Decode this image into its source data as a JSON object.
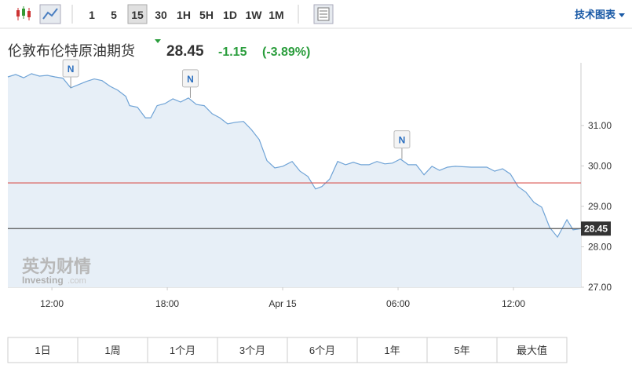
{
  "toolbar": {
    "intervals": [
      "1",
      "5",
      "15",
      "30",
      "1H",
      "5H",
      "1D",
      "1W",
      "1M"
    ],
    "active_interval": "15",
    "menu": "技术图表"
  },
  "header": {
    "name": "伦敦布伦特原油期货",
    "price": 28.45,
    "change": -1.15,
    "change_pct": "(-3.89%)"
  },
  "periods": [
    "1日",
    "1周",
    "1个月",
    "3个月",
    "6个月",
    "1年",
    "5年",
    "最大值"
  ],
  "watermark": {
    "cn": "英为财情",
    "en": "Investing",
    "suffix": ".com"
  },
  "chart_data": {
    "type": "line",
    "area": true,
    "x": [
      9.71,
      10.12,
      10.53,
      10.94,
      11.35,
      11.76,
      12.16,
      12.57,
      12.98,
      13.39,
      13.8,
      14.2,
      14.61,
      15.02,
      15.43,
      15.84,
      16.04,
      16.45,
      16.86,
      17.14,
      17.47,
      17.88,
      18.29,
      18.69,
      19.1,
      19.51,
      19.92,
      20.33,
      20.73,
      21.14,
      21.55,
      21.96,
      22.37,
      22.78,
      23.18,
      23.59,
      24,
      24.49,
      24.9,
      25.31,
      25.71,
      26.04,
      26.45,
      26.86,
      27.27,
      27.67,
      28.08,
      28.49,
      28.9,
      29.31,
      29.71,
      30.12,
      30.53,
      30.94,
      31.35,
      31.76,
      32.16,
      32.57,
      32.98,
      33.8,
      34.61,
      35.02,
      35.43,
      35.84,
      36.24,
      36.65,
      37.06,
      37.47,
      37.88,
      38.29,
      38.78,
      39.1,
      39.51
    ],
    "series": [
      {
        "color": "#6fa3d6",
        "values": [
          32.2,
          32.26,
          32.18,
          32.28,
          32.22,
          32.24,
          32.2,
          32.17,
          31.93,
          32.01,
          32.09,
          32.15,
          32.11,
          31.97,
          31.87,
          31.72,
          31.49,
          31.45,
          31.19,
          31.19,
          31.49,
          31.54,
          31.66,
          31.58,
          31.68,
          31.52,
          31.49,
          31.29,
          31.19,
          31.04,
          31.08,
          31.1,
          30.9,
          30.65,
          30.13,
          29.95,
          29.99,
          30.11,
          29.87,
          29.74,
          29.43,
          29.49,
          29.68,
          30.11,
          30.03,
          30.09,
          30.03,
          30.03,
          30.11,
          30.05,
          30.07,
          30.17,
          30.03,
          30.03,
          29.78,
          29.99,
          29.89,
          29.97,
          29.99,
          29.97,
          29.97,
          29.87,
          29.93,
          29.8,
          29.49,
          29.35,
          29.1,
          28.98,
          28.48,
          28.24,
          28.67,
          28.42,
          28.45
        ]
      }
    ],
    "xlim": [
      9.71,
      39.51
    ],
    "xticks": [
      {
        "value": 12,
        "label": "12:00"
      },
      {
        "value": 18,
        "label": "18:00"
      },
      {
        "value": 24,
        "label": "Apr 15"
      },
      {
        "value": 30,
        "label": "06:00"
      },
      {
        "value": 36,
        "label": "12:00"
      }
    ],
    "ylim": [
      27,
      32.55
    ],
    "yticks": [
      {
        "value": 27,
        "label": "27.00"
      },
      {
        "value": 28,
        "label": "28.00"
      },
      {
        "value": 29,
        "label": "29.00"
      },
      {
        "value": 30,
        "label": "30.00"
      },
      {
        "value": 31,
        "label": "31.00"
      }
    ],
    "reference_lines": [
      {
        "value": 29.58,
        "color": "#d9534f"
      },
      {
        "value": 28.45,
        "color": "#555555"
      }
    ],
    "annotations": [
      {
        "x": 12.98,
        "label": "N"
      },
      {
        "x": 19.2,
        "label": "N"
      },
      {
        "x": 30.2,
        "label": "N"
      }
    ]
  }
}
